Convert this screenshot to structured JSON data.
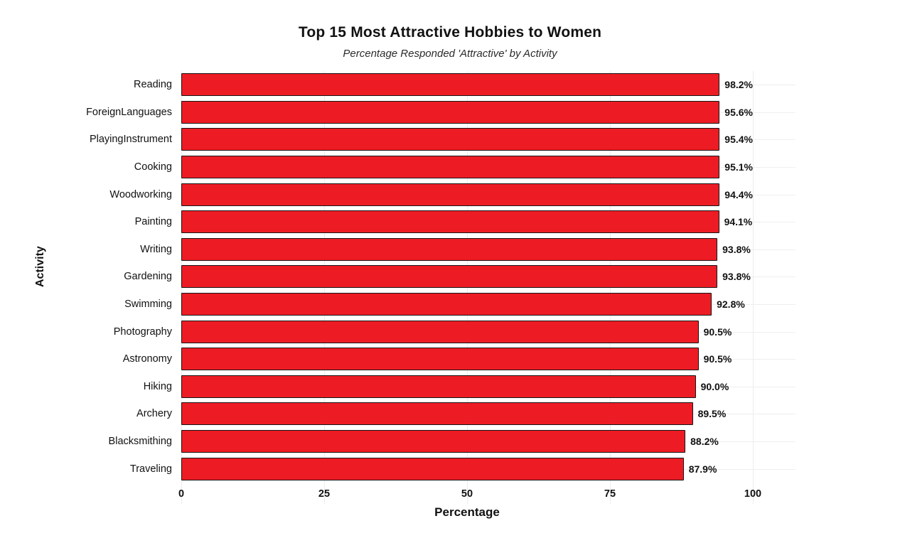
{
  "chart_data": {
    "type": "bar",
    "orientation": "horizontal",
    "title": "Top 15 Most Attractive Hobbies to Women",
    "subtitle": "Percentage Responded 'Attractive' by Activity",
    "xlabel": "Percentage",
    "ylabel": "Activity",
    "xlim": [
      0,
      100
    ],
    "xticks": [
      0,
      25,
      50,
      75,
      100
    ],
    "grid": true,
    "legend": false,
    "bar_color": "#ed1c24",
    "bar_border_color": "#161616",
    "categories": [
      "Reading",
      "ForeignLanguages",
      "PlayingInstrument",
      "Cooking",
      "Woodworking",
      "Painting",
      "Writing",
      "Gardening",
      "Swimming",
      "Photography",
      "Astronomy",
      "Hiking",
      "Archery",
      "Blacksmithing",
      "Traveling"
    ],
    "values": [
      98.2,
      95.6,
      95.4,
      95.1,
      94.4,
      94.1,
      93.8,
      93.8,
      92.8,
      90.5,
      90.5,
      90.0,
      89.5,
      88.2,
      87.9
    ],
    "value_labels": [
      "98.2%",
      "95.6%",
      "95.4%",
      "95.1%",
      "94.4%",
      "94.1%",
      "93.8%",
      "93.8%",
      "92.8%",
      "90.5%",
      "90.5%",
      "90.0%",
      "89.5%",
      "88.2%",
      "87.9%"
    ]
  }
}
